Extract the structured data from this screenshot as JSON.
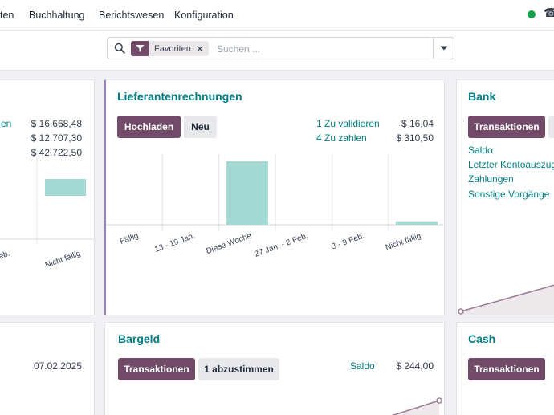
{
  "nav": {
    "items": [
      "ten",
      "Buchhaltung",
      "Berichtswesen",
      "Konfiguration"
    ]
  },
  "search": {
    "facet_label": "Favoriten",
    "placeholder": "Suchen ..."
  },
  "left_card": {
    "rows": [
      {
        "label": "en",
        "amount": "$ 16.668,48"
      },
      {
        "label": "",
        "amount": "$ 12.707,30"
      },
      {
        "label": "",
        "amount": "$ 42.722,50"
      }
    ],
    "ticks": [
      "eb.",
      "Nicht fällig"
    ]
  },
  "vendor_bills": {
    "title": "Lieferantenrechnungen",
    "upload_label": "Hochladen",
    "new_label": "Neu",
    "to_validate_label": "1 Zu validieren",
    "to_validate_amount": "$ 16,04",
    "to_pay_label": "4 Zu zahlen",
    "to_pay_amount": "$ 310,50",
    "chart_data": {
      "type": "bar",
      "categories": [
        "Fällig",
        "13 - 19 Jan.",
        "Diese Woche",
        "27 Jan. - 2 Feb.",
        "3 - 9 Feb.",
        "Nicht fällig"
      ],
      "values": [
        0,
        0,
        294.46,
        0,
        0,
        16.04
      ],
      "ylim": [
        0,
        320
      ],
      "color": "#a4d9d4"
    }
  },
  "bank": {
    "title": "Bank",
    "transactions_label": "Transaktionen",
    "links": [
      "Saldo",
      "Letzter Kontoauszug",
      "Zahlungen",
      "Sonstige Vorgänge"
    ]
  },
  "bottom_left": {
    "date": "07.02.2025"
  },
  "cash_box": {
    "title": "Bargeld",
    "transactions_label": "Transaktionen",
    "reconcile_label": "1 abzustimmen",
    "balance_label": "Saldo",
    "balance_amount": "$ 244,00"
  },
  "cash": {
    "title": "Cash",
    "transactions_label": "Transaktionen"
  },
  "colors": {
    "brand": "#714b67",
    "accent": "#017e84",
    "bar": "#a4d9d4",
    "line": "#9b7c92",
    "area": "#eee8ec"
  }
}
